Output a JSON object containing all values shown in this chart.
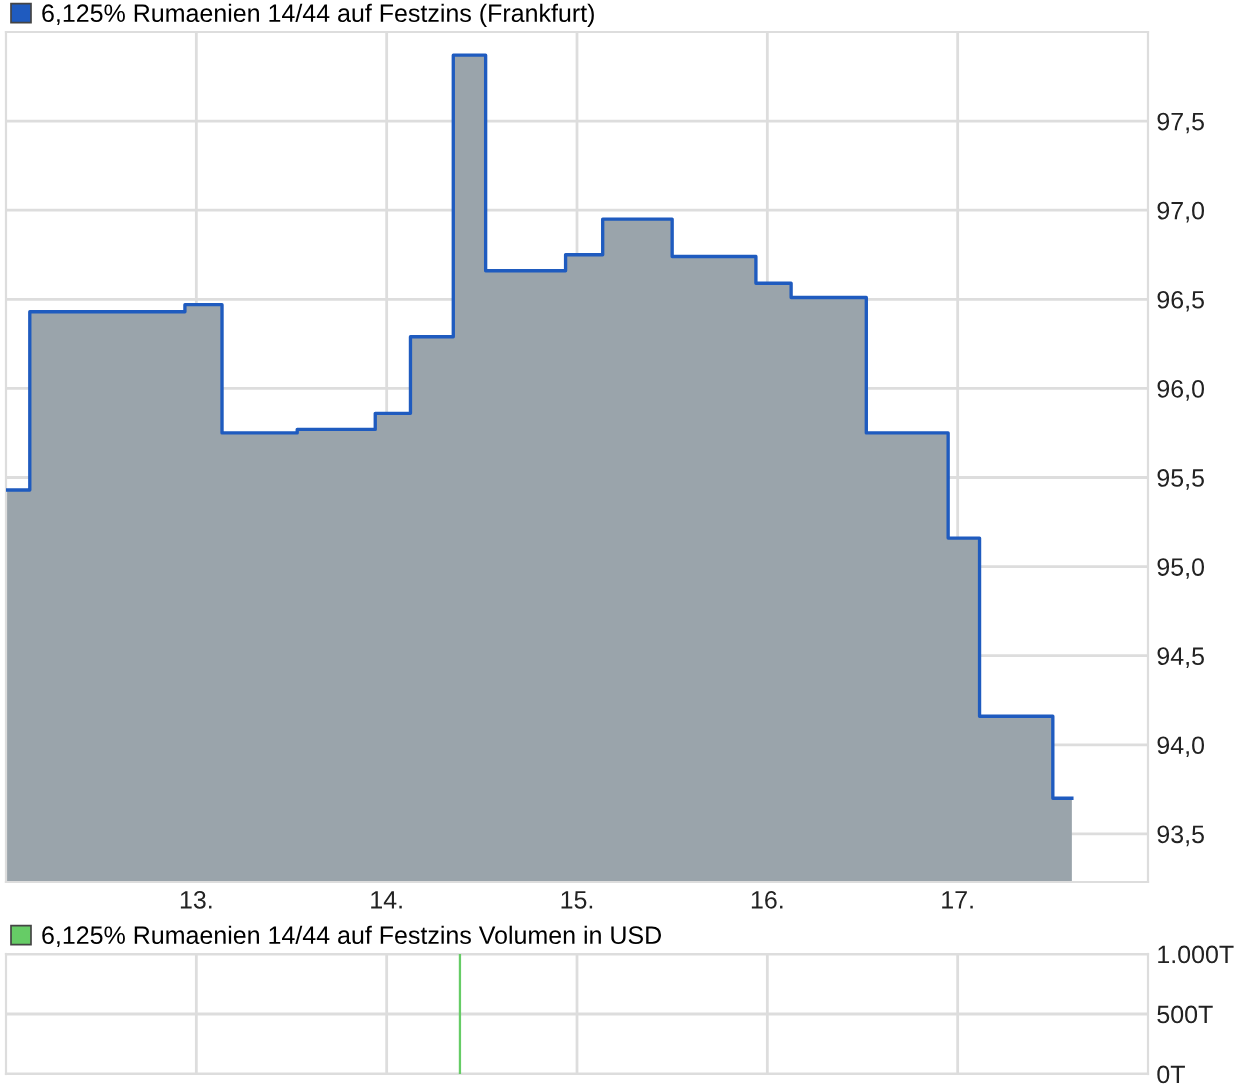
{
  "chart_data": [
    {
      "type": "area",
      "x": [
        12.0,
        12.125,
        12.125,
        12.94,
        12.94,
        13.135,
        13.135,
        13.53,
        13.53,
        13.94,
        13.94,
        14.125,
        14.125,
        14.35,
        14.35,
        14.52,
        14.52,
        14.94,
        14.94,
        15.135,
        15.135,
        15.5,
        15.5,
        15.94,
        15.94,
        16.125,
        16.125,
        16.52,
        16.52,
        16.95,
        16.95,
        17.115,
        17.115,
        17.5,
        17.5,
        17.6
      ],
      "series": [
        {
          "name": "6,125% Rumaenien 14/44 auf Festzins (Frankfurt)",
          "color": "#1f5bbf",
          "values": [
            95.43,
            95.43,
            96.43,
            96.43,
            96.47,
            96.47,
            95.75,
            95.75,
            95.77,
            95.77,
            95.86,
            95.86,
            96.29,
            96.29,
            97.87,
            97.87,
            96.66,
            96.66,
            96.75,
            96.75,
            96.95,
            96.95,
            96.74,
            96.74,
            96.59,
            96.59,
            96.51,
            96.51,
            95.75,
            95.75,
            95.16,
            95.16,
            94.16,
            94.16,
            93.7,
            93.7
          ]
        }
      ],
      "xlim": [
        12.0,
        18.0
      ],
      "xticks": [
        {
          "value": 13,
          "label": "13."
        },
        {
          "value": 14,
          "label": "14."
        },
        {
          "value": 15,
          "label": "15."
        },
        {
          "value": 16,
          "label": "16."
        },
        {
          "value": 17,
          "label": "17."
        }
      ],
      "ylim": [
        93.23,
        98.0
      ],
      "yticks": [
        {
          "value": 93.5,
          "label": "93,5"
        },
        {
          "value": 94,
          "label": "94,0"
        },
        {
          "value": 94.5,
          "label": "94,5"
        },
        {
          "value": 95,
          "label": "95,0"
        },
        {
          "value": 95.5,
          "label": "95,5"
        },
        {
          "value": 96,
          "label": "96,0"
        },
        {
          "value": 96.5,
          "label": "96,5"
        },
        {
          "value": 97,
          "label": "97,0"
        },
        {
          "value": 97.5,
          "label": "97,5"
        }
      ],
      "grid": true,
      "legend": "top left"
    },
    {
      "type": "bar",
      "x": [
        14.385
      ],
      "series": [
        {
          "name": "6,125% Rumaenien 14/44 auf Festzins Volumen in USD",
          "color": "#66cc66",
          "values": [
            1000
          ]
        }
      ],
      "xlim": [
        12.0,
        18.0
      ],
      "xticks": [
        13,
        14,
        15,
        16,
        17
      ],
      "ylim": [
        0,
        1000
      ],
      "yticks": [
        {
          "value": 0,
          "label": "0T"
        },
        {
          "value": 500,
          "label": "500T"
        },
        {
          "value": 1000,
          "label": "1.000T"
        }
      ],
      "tick_labels": "y",
      "grid": true,
      "legend": "top left"
    }
  ]
}
